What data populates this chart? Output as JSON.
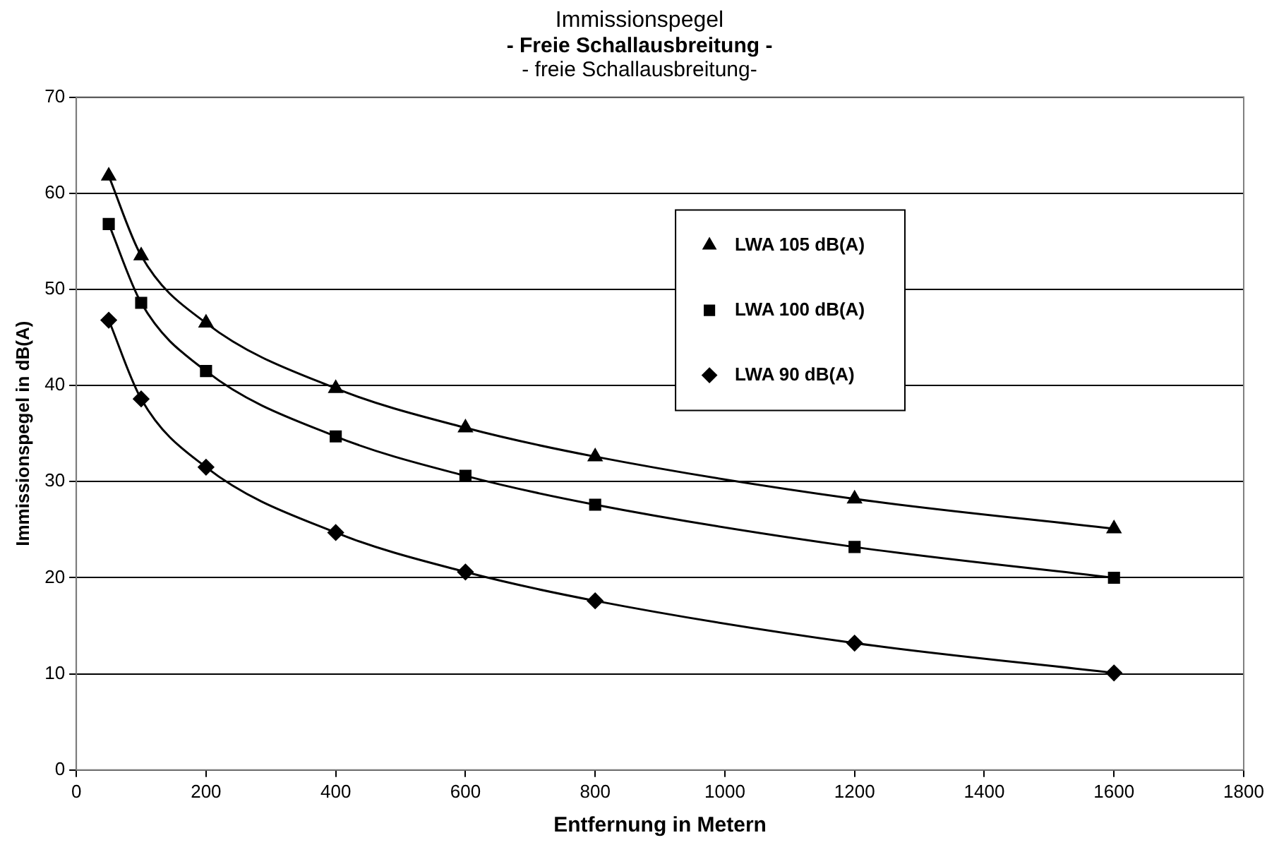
{
  "chart_data": {
    "type": "line",
    "title": "Immissionspegel",
    "subtitle": "- Freie Schallausbreitung -",
    "annotations": [
      "- freie Schallausbreitung-"
    ],
    "xlabel": "Entfernung in Metern",
    "ylabel": "Immissionspegel in dB(A)",
    "x": [
      50,
      100,
      200,
      400,
      600,
      800,
      1200,
      1600
    ],
    "series": [
      {
        "name": "LWA 105 dB(A)",
        "color": "#000000",
        "marker": "triangle",
        "values": [
          61.8,
          53.5,
          46.5,
          39.7,
          35.6,
          32.6,
          28.2,
          25.1
        ]
      },
      {
        "name": "LWA 100 dB(A)",
        "color": "#000000",
        "marker": "square",
        "values": [
          56.8,
          48.6,
          41.5,
          34.7,
          30.6,
          27.6,
          23.2,
          20.0
        ]
      },
      {
        "name": "LWA 90 dB(A)",
        "color": "#000000",
        "marker": "diamond",
        "values": [
          46.8,
          38.6,
          31.5,
          24.7,
          20.6,
          17.6,
          13.2,
          10.1
        ]
      }
    ],
    "xlim": [
      0,
      1800
    ],
    "xticks": [
      0,
      200,
      400,
      600,
      800,
      1000,
      1200,
      1400,
      1600,
      1800
    ],
    "ylim": [
      0,
      70
    ],
    "yticks": [
      0,
      10,
      20,
      30,
      40,
      50,
      60,
      70
    ],
    "grid": "y",
    "legend": "top right",
    "line_style": "solid"
  }
}
